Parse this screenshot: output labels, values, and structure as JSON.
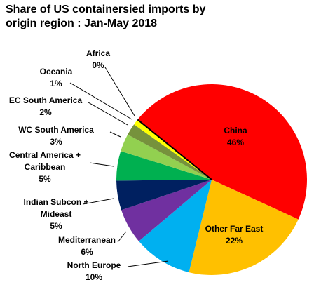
{
  "chart_data": {
    "type": "pie",
    "title": "Share of US containersied imports by\norigin region : Jan-May 2018",
    "categories": [
      "China",
      "Other Far East",
      "North Europe",
      "Mediterranean",
      "Indian Subcon +\nMideast",
      "Central America +\nCaribbean",
      "WC South America",
      "EC South America",
      "Oceania",
      "Africa"
    ],
    "values": [
      46,
      22,
      10,
      6,
      5,
      5,
      3,
      2,
      1,
      0
    ],
    "value_labels": [
      "46%",
      "22%",
      "10%",
      "6%",
      "5%",
      "5%",
      "3%",
      "2%",
      "1%",
      "0%"
    ],
    "colors": [
      "#ff0000",
      "#ffc000",
      "#00b0f0",
      "#7030a0",
      "#002060",
      "#00b050",
      "#92d050",
      "#76923c",
      "#ffff00",
      "#000000"
    ]
  }
}
